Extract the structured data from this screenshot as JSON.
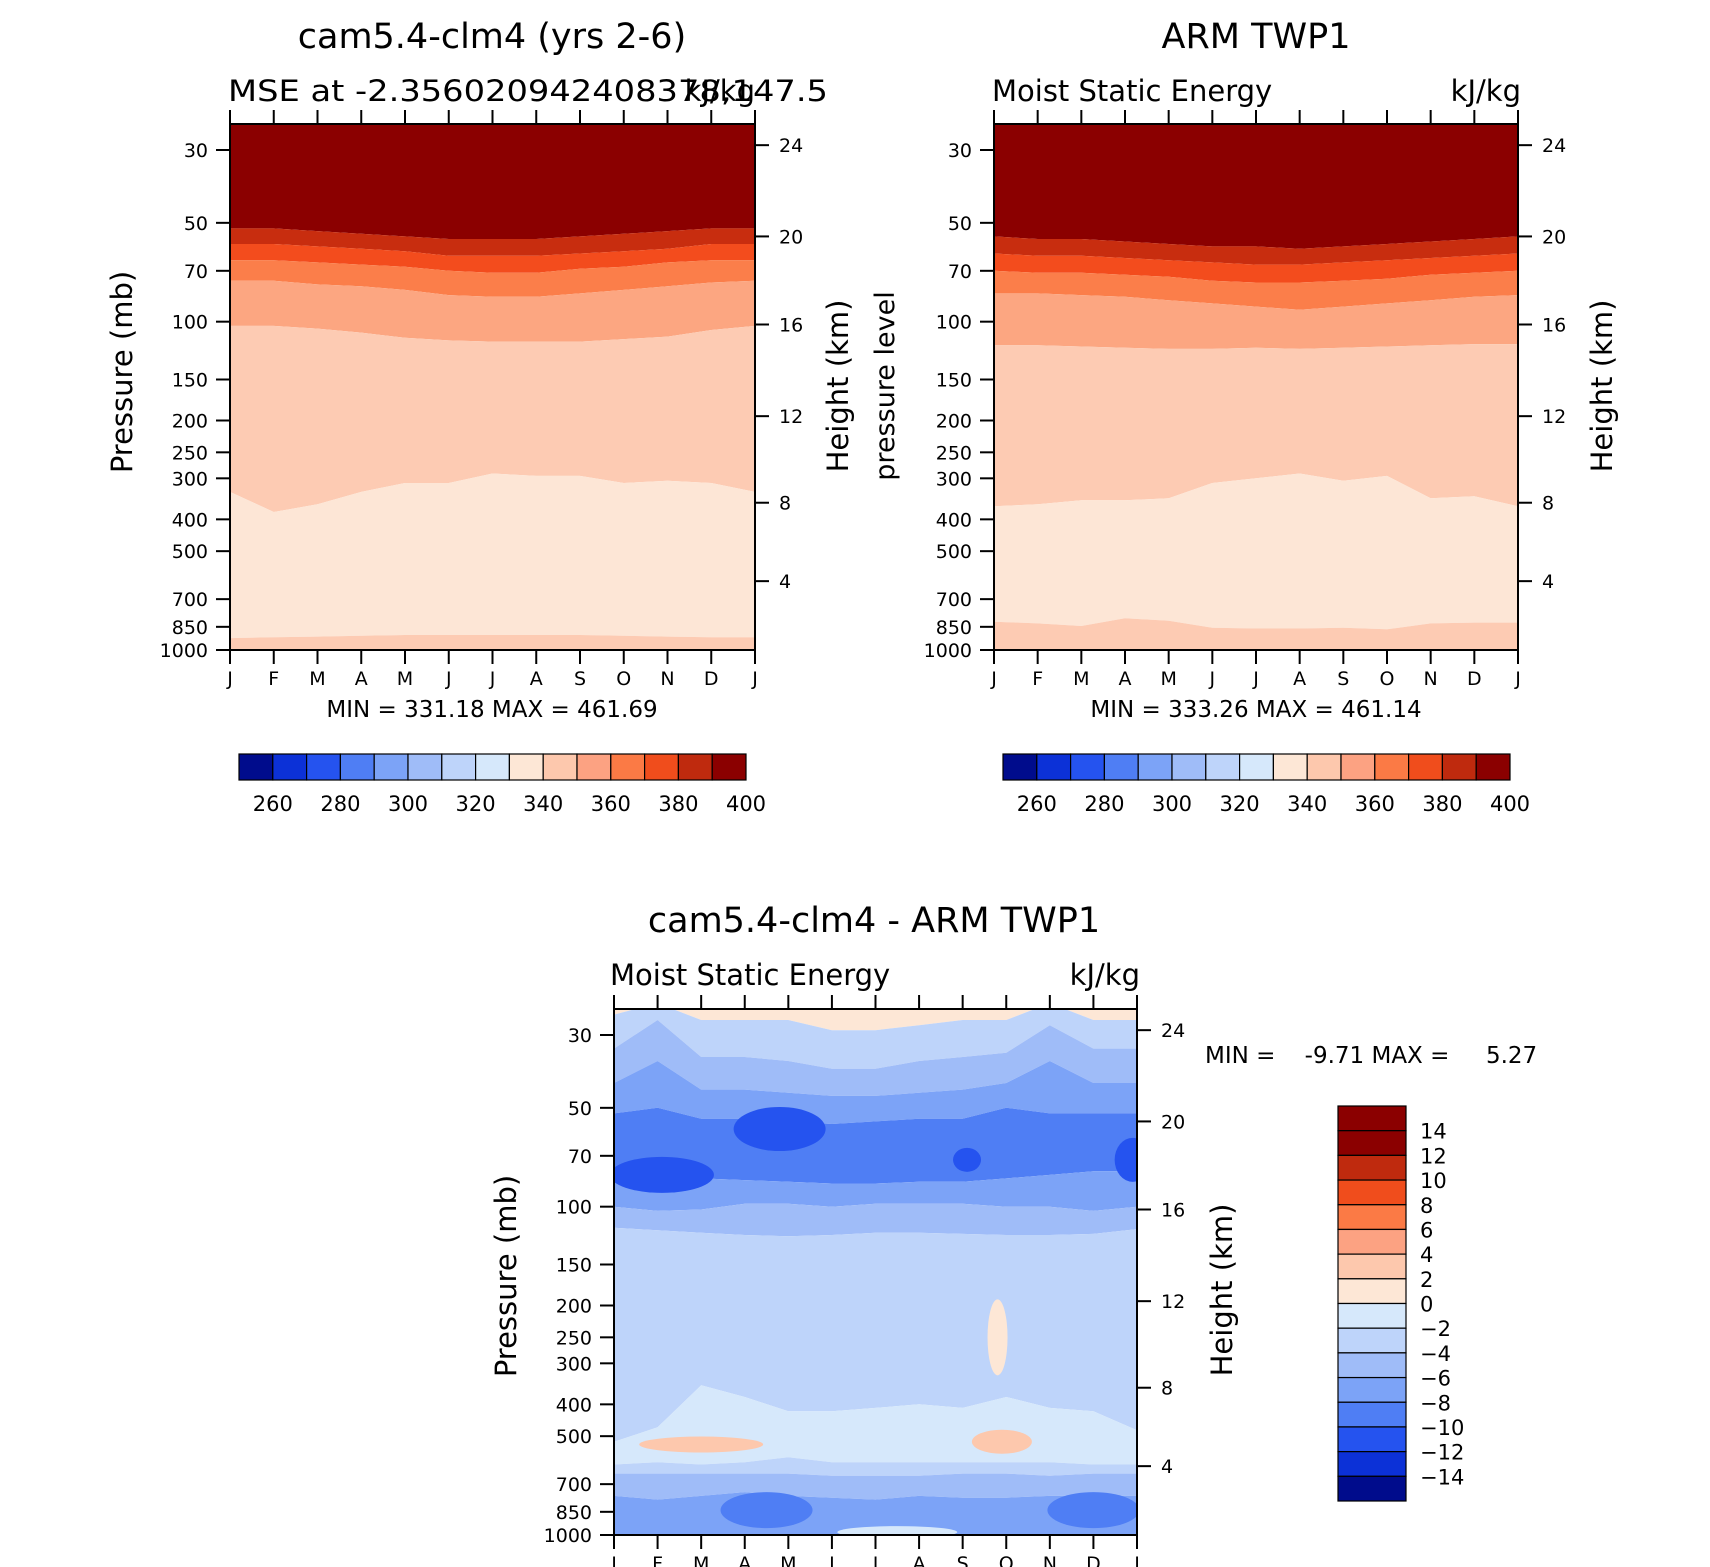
{
  "chart_data": [
    {
      "type": "heatmap",
      "title": "cam5.4-clm4 (yrs 2-6)",
      "subtitle_left": "MSE at -2.356020942408378,147.5",
      "subtitle_right": "kJ/kg",
      "xlabel": "",
      "ylabel": "Pressure (mb)",
      "ylabel_right": "Height (km)",
      "x_ticks": [
        "J",
        "F",
        "M",
        "A",
        "M",
        "J",
        "J",
        "A",
        "S",
        "O",
        "N",
        "D",
        "J"
      ],
      "y_ticks": [
        30,
        50,
        70,
        100,
        150,
        200,
        250,
        300,
        400,
        500,
        700,
        850,
        1000
      ],
      "y_scale": "log",
      "ylim": [
        1000,
        25
      ],
      "height_ticks": [
        24,
        20,
        16,
        12,
        8,
        4
      ],
      "stats": "MIN = 331.18 MAX = 461.69",
      "colorbar": {
        "orientation": "horizontal",
        "labels": [
          "260",
          "280",
          "300",
          "320",
          "340",
          "360",
          "380",
          "400"
        ]
      },
      "contour_boundaries": [
        {
          "level": 400,
          "pressure": [
            52,
            52,
            53,
            54,
            55,
            56,
            56,
            56,
            55,
            54,
            53,
            52,
            52
          ]
        },
        {
          "level": 390,
          "pressure": [
            58,
            58,
            59,
            60,
            61,
            63,
            63,
            63,
            62,
            61,
            60,
            58,
            58
          ]
        },
        {
          "level": 380,
          "pressure": [
            65,
            65,
            66,
            67,
            68,
            70,
            71,
            71,
            69,
            68,
            66,
            65,
            65
          ]
        },
        {
          "level": 370,
          "pressure": [
            75,
            75,
            77,
            78,
            80,
            83,
            84,
            84,
            82,
            80,
            78,
            76,
            75
          ]
        },
        {
          "level": 360,
          "pressure": [
            103,
            103,
            105,
            108,
            112,
            114,
            115,
            115,
            115,
            113,
            111,
            106,
            103
          ]
        },
        {
          "level": 340,
          "pressure": [
            330,
            380,
            360,
            330,
            310,
            310,
            290,
            295,
            295,
            310,
            305,
            310,
            330
          ]
        },
        {
          "level": 330,
          "pressure": [
            920,
            915,
            910,
            905,
            900,
            900,
            900,
            900,
            900,
            905,
            910,
            915,
            915
          ]
        }
      ]
    },
    {
      "type": "heatmap",
      "title": "ARM TWP1",
      "subtitle_left": "Moist Static Energy",
      "subtitle_right": "kJ/kg",
      "xlabel": "",
      "ylabel": "pressure level",
      "ylabel_right": "Height (km)",
      "x_ticks": [
        "J",
        "F",
        "M",
        "A",
        "M",
        "J",
        "J",
        "A",
        "S",
        "O",
        "N",
        "D",
        "J"
      ],
      "y_ticks": [
        30,
        50,
        70,
        100,
        150,
        200,
        250,
        300,
        400,
        500,
        700,
        850,
        1000
      ],
      "y_scale": "log",
      "ylim": [
        1000,
        25
      ],
      "height_ticks": [
        24,
        20,
        16,
        12,
        8,
        4
      ],
      "stats": "MIN = 333.26 MAX = 461.14",
      "colorbar": {
        "orientation": "horizontal",
        "labels": [
          "260",
          "280",
          "300",
          "320",
          "340",
          "360",
          "380",
          "400"
        ]
      },
      "contour_boundaries": [
        {
          "level": 400,
          "pressure": [
            55,
            56,
            56,
            57,
            58,
            59,
            59,
            60,
            59,
            58,
            57,
            56,
            55
          ]
        },
        {
          "level": 390,
          "pressure": [
            62,
            63,
            63,
            64,
            65,
            66,
            67,
            67,
            66,
            65,
            64,
            63,
            62
          ]
        },
        {
          "level": 380,
          "pressure": [
            70,
            71,
            71,
            72,
            73,
            75,
            76,
            76,
            75,
            74,
            72,
            71,
            70
          ]
        },
        {
          "level": 370,
          "pressure": [
            82,
            82,
            83,
            84,
            86,
            88,
            90,
            92,
            90,
            88,
            86,
            84,
            83
          ]
        },
        {
          "level": 360,
          "pressure": [
            118,
            118,
            119,
            120,
            121,
            121,
            120,
            121,
            120,
            119,
            118,
            117,
            117
          ]
        },
        {
          "level": 340,
          "pressure": [
            365,
            360,
            350,
            350,
            345,
            310,
            300,
            290,
            305,
            295,
            345,
            340,
            365
          ]
        },
        {
          "level": 330,
          "pressure": [
            820,
            830,
            845,
            800,
            815,
            855,
            860,
            860,
            855,
            865,
            830,
            825,
            825
          ]
        }
      ]
    },
    {
      "type": "heatmap",
      "title": "cam5.4-clm4 - ARM TWP1",
      "subtitle_left": "Moist Static Energy",
      "subtitle_right": "kJ/kg",
      "xlabel": "",
      "ylabel": "Pressure (mb)",
      "ylabel_right": "Height (km)",
      "x_ticks": [
        "J",
        "F",
        "M",
        "A",
        "M",
        "J",
        "J",
        "A",
        "S",
        "O",
        "N",
        "D",
        "J"
      ],
      "y_ticks": [
        30,
        50,
        70,
        100,
        150,
        200,
        250,
        300,
        400,
        500,
        700,
        850,
        1000
      ],
      "y_scale": "log",
      "ylim": [
        1000,
        25
      ],
      "height_ticks": [
        24,
        20,
        16,
        12,
        8,
        4
      ],
      "stats": "MIN =    -9.71 MAX =     5.27",
      "colorbar": {
        "orientation": "vertical",
        "labels": [
          "14",
          "12",
          "10",
          "8",
          "6",
          "4",
          "2",
          "0",
          "−2",
          "−4",
          "−6",
          "−8",
          "−10",
          "−12",
          "−14"
        ]
      },
      "bands_top_to_bottom": [
        {
          "value": 2,
          "bottom": [
            26,
            24,
            27,
            27,
            27,
            29,
            29,
            28,
            27,
            27,
            24,
            27,
            27
          ]
        },
        {
          "value": -2,
          "bottom": [
            33,
            27,
            35,
            35,
            36,
            38,
            38,
            36,
            35,
            34,
            28,
            33,
            33
          ]
        },
        {
          "value": -4,
          "bottom": [
            42,
            36,
            44,
            44,
            45,
            46,
            46,
            45,
            44,
            42,
            36,
            42,
            42
          ]
        },
        {
          "value": -6,
          "bottom": [
            52,
            50,
            54,
            54,
            55,
            56,
            55,
            54,
            54,
            50,
            52,
            52,
            52
          ]
        },
        {
          "value": -8,
          "bottom": [
            78,
            80,
            82,
            83,
            84,
            85,
            85,
            84,
            84,
            82,
            80,
            78,
            78
          ]
        },
        {
          "value": -6,
          "bottom": [
            100,
            103,
            102,
            98,
            98,
            100,
            98,
            98,
            98,
            100,
            100,
            103,
            100
          ]
        },
        {
          "value": -4,
          "bottom": [
            116,
            118,
            120,
            122,
            123,
            122,
            120,
            120,
            121,
            122,
            122,
            121,
            117
          ]
        },
        {
          "value": -2,
          "bottom": [
            520,
            470,
            350,
            380,
            420,
            420,
            410,
            400,
            410,
            380,
            410,
            420,
            480
          ]
        },
        {
          "value": 0,
          "bottom": [
            610,
            600,
            610,
            600,
            580,
            600,
            600,
            600,
            600,
            600,
            600,
            610,
            610
          ]
        },
        {
          "value": -2,
          "bottom": [
            650,
            650,
            650,
            650,
            650,
            660,
            660,
            660,
            650,
            650,
            660,
            650,
            650
          ]
        },
        {
          "value": -4,
          "bottom": [
            760,
            780,
            760,
            740,
            760,
            770,
            780,
            760,
            770,
            770,
            760,
            760,
            760
          ]
        },
        {
          "value": -6,
          "bottom": [
            1000,
            1000,
            1000,
            1000,
            1000,
            1000,
            1000,
            1000,
            1000,
            1000,
            1000,
            1000,
            1000
          ]
        }
      ],
      "blobs": [
        {
          "value": -10,
          "month": 1.1,
          "pressure": 80
        },
        {
          "value": -10,
          "month": 3.8,
          "pressure": 58
        },
        {
          "value": -10,
          "month": 8.1,
          "pressure": 72
        },
        {
          "value": -10,
          "month": 11.9,
          "pressure": 72
        },
        {
          "value": 4,
          "month": 2.0,
          "pressure": 530
        },
        {
          "value": 4,
          "month": 8.9,
          "pressure": 520
        },
        {
          "value": 2,
          "month": 8.8,
          "pressure": 250
        },
        {
          "value": -8,
          "month": 3.5,
          "pressure": 840
        },
        {
          "value": -8,
          "month": 11.0,
          "pressure": 840
        },
        {
          "value": 0,
          "month": 6.5,
          "pressure": 980
        }
      ]
    }
  ]
}
